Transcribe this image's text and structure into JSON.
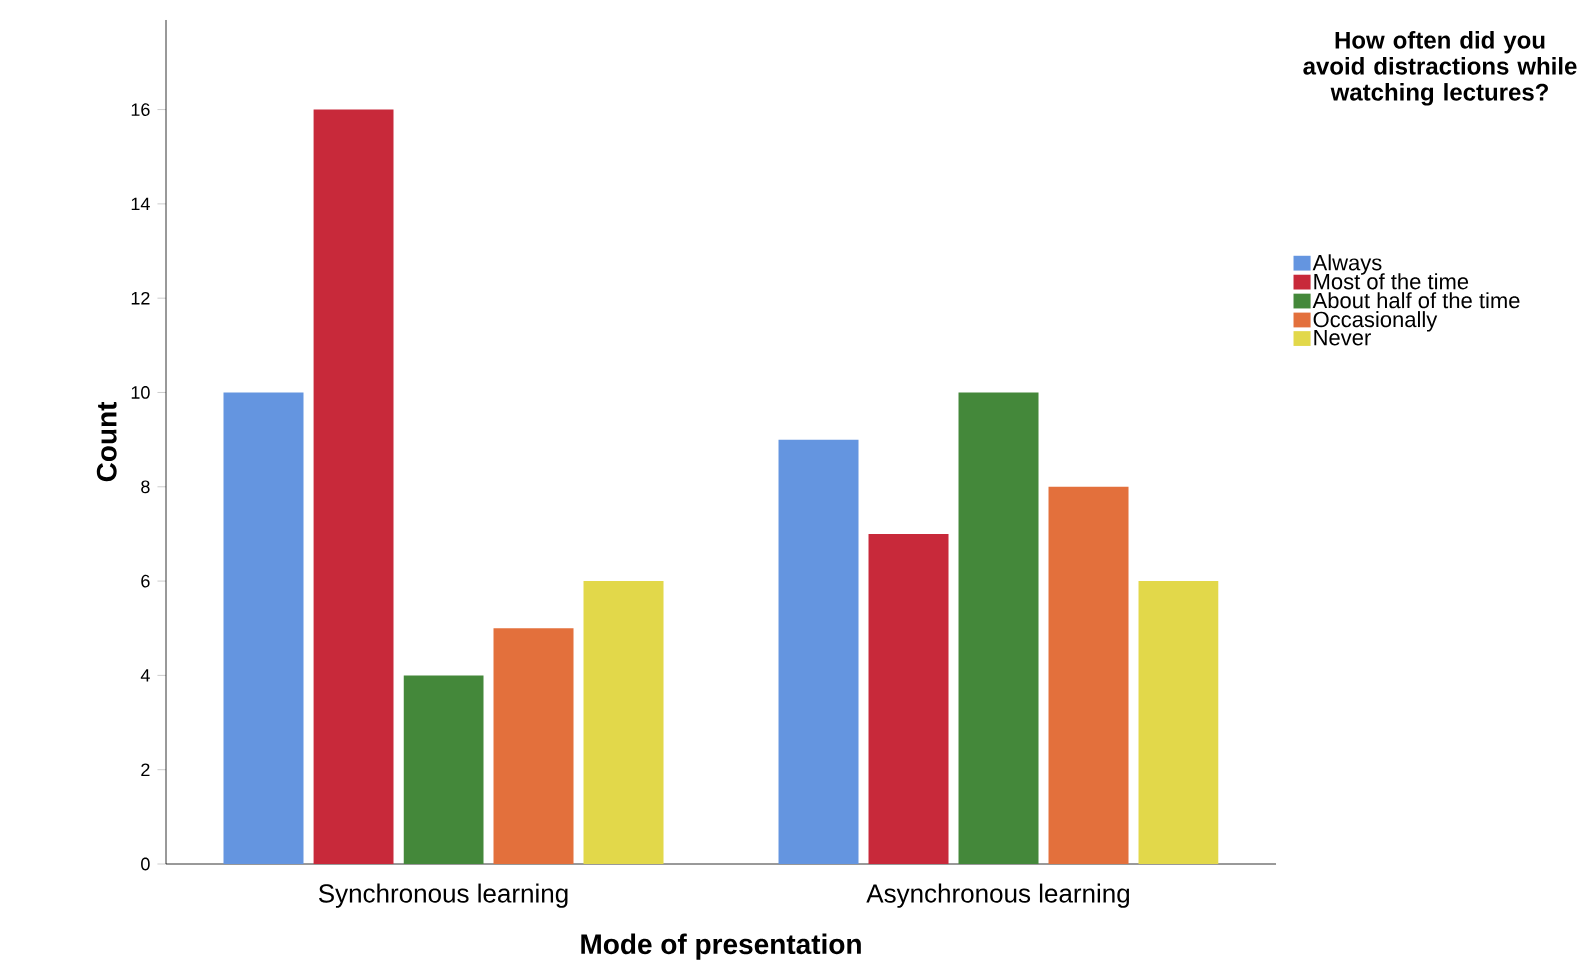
{
  "chart_data": {
    "type": "bar",
    "xlabel": "Mode of presentation",
    "ylabel": "Count",
    "legend_title": "How often did you avoid distractions while watching lectures?",
    "categories": [
      "Synchronous learning",
      "Asynchronous learning"
    ],
    "series": [
      {
        "name": "Always",
        "color": "#6495e0",
        "values": [
          10,
          9
        ]
      },
      {
        "name": "Most of the time",
        "color": "#c8293a",
        "values": [
          16,
          7
        ]
      },
      {
        "name": "About half of the time",
        "color": "#44883a",
        "values": [
          4,
          10
        ]
      },
      {
        "name": "Occasionally",
        "color": "#e3703c",
        "values": [
          5,
          8
        ]
      },
      {
        "name": "Never",
        "color": "#e2d84a",
        "values": [
          6,
          6
        ]
      }
    ],
    "ylim": [
      0,
      17.9
    ],
    "yticks": [
      0,
      2,
      4,
      6,
      8,
      10,
      12,
      14,
      16
    ],
    "legend": "right",
    "grid": false
  }
}
